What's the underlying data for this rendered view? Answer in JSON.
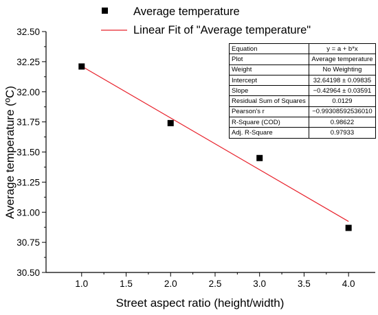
{
  "chart_data": {
    "type": "scatter",
    "title": "",
    "xlabel": "Street aspect ratio (height/width)",
    "ylabel": "Average temperature (ºC)",
    "xlim": [
      0.6,
      4.3
    ],
    "ylim": [
      30.5,
      32.5
    ],
    "x_ticks": [
      1.0,
      1.5,
      2.0,
      2.5,
      3.0,
      3.5,
      4.0
    ],
    "x_tick_labels": [
      "1.0",
      "1.5",
      "2.0",
      "2.5",
      "3.0",
      "3.5",
      "4.0"
    ],
    "y_ticks": [
      30.5,
      30.75,
      31.0,
      31.25,
      31.5,
      31.75,
      32.0,
      32.25,
      32.5
    ],
    "y_tick_labels": [
      "30.50",
      "30.75",
      "31.00",
      "31.25",
      "31.50",
      "31.75",
      "32.00",
      "32.25",
      "32.50"
    ],
    "grid": false,
    "legend_position": "top-center",
    "series": [
      {
        "name": "Average temperature",
        "marker": "square",
        "color": "#000000",
        "x": [
          1.0,
          2.0,
          3.0,
          4.0
        ],
        "y": [
          32.21,
          31.74,
          31.45,
          30.87
        ]
      },
      {
        "name": "Linear Fit of \"Average temperature\"",
        "kind": "line",
        "color": "#e8212b",
        "intercept": 32.64198,
        "slope": -0.42964,
        "x": [
          1.0,
          4.0
        ]
      }
    ],
    "stats_table": [
      {
        "label": "Equation",
        "value": "y = a + b*x"
      },
      {
        "label": "Plot",
        "value": "Average temperature"
      },
      {
        "label": "Weight",
        "value": "No Weighting"
      },
      {
        "label": "Intercept",
        "value": "32.64198 ± 0.09835"
      },
      {
        "label": "Slope",
        "value": "−0.42964 ± 0.03591"
      },
      {
        "label": "Residual Sum of Squares",
        "value": "0.0129"
      },
      {
        "label": "Pearson's r",
        "value": "−0.99308592536010"
      },
      {
        "label": "R-Square (COD)",
        "value": "0.98622"
      },
      {
        "label": "Adj. R-Square",
        "value": "0.97933"
      }
    ]
  }
}
